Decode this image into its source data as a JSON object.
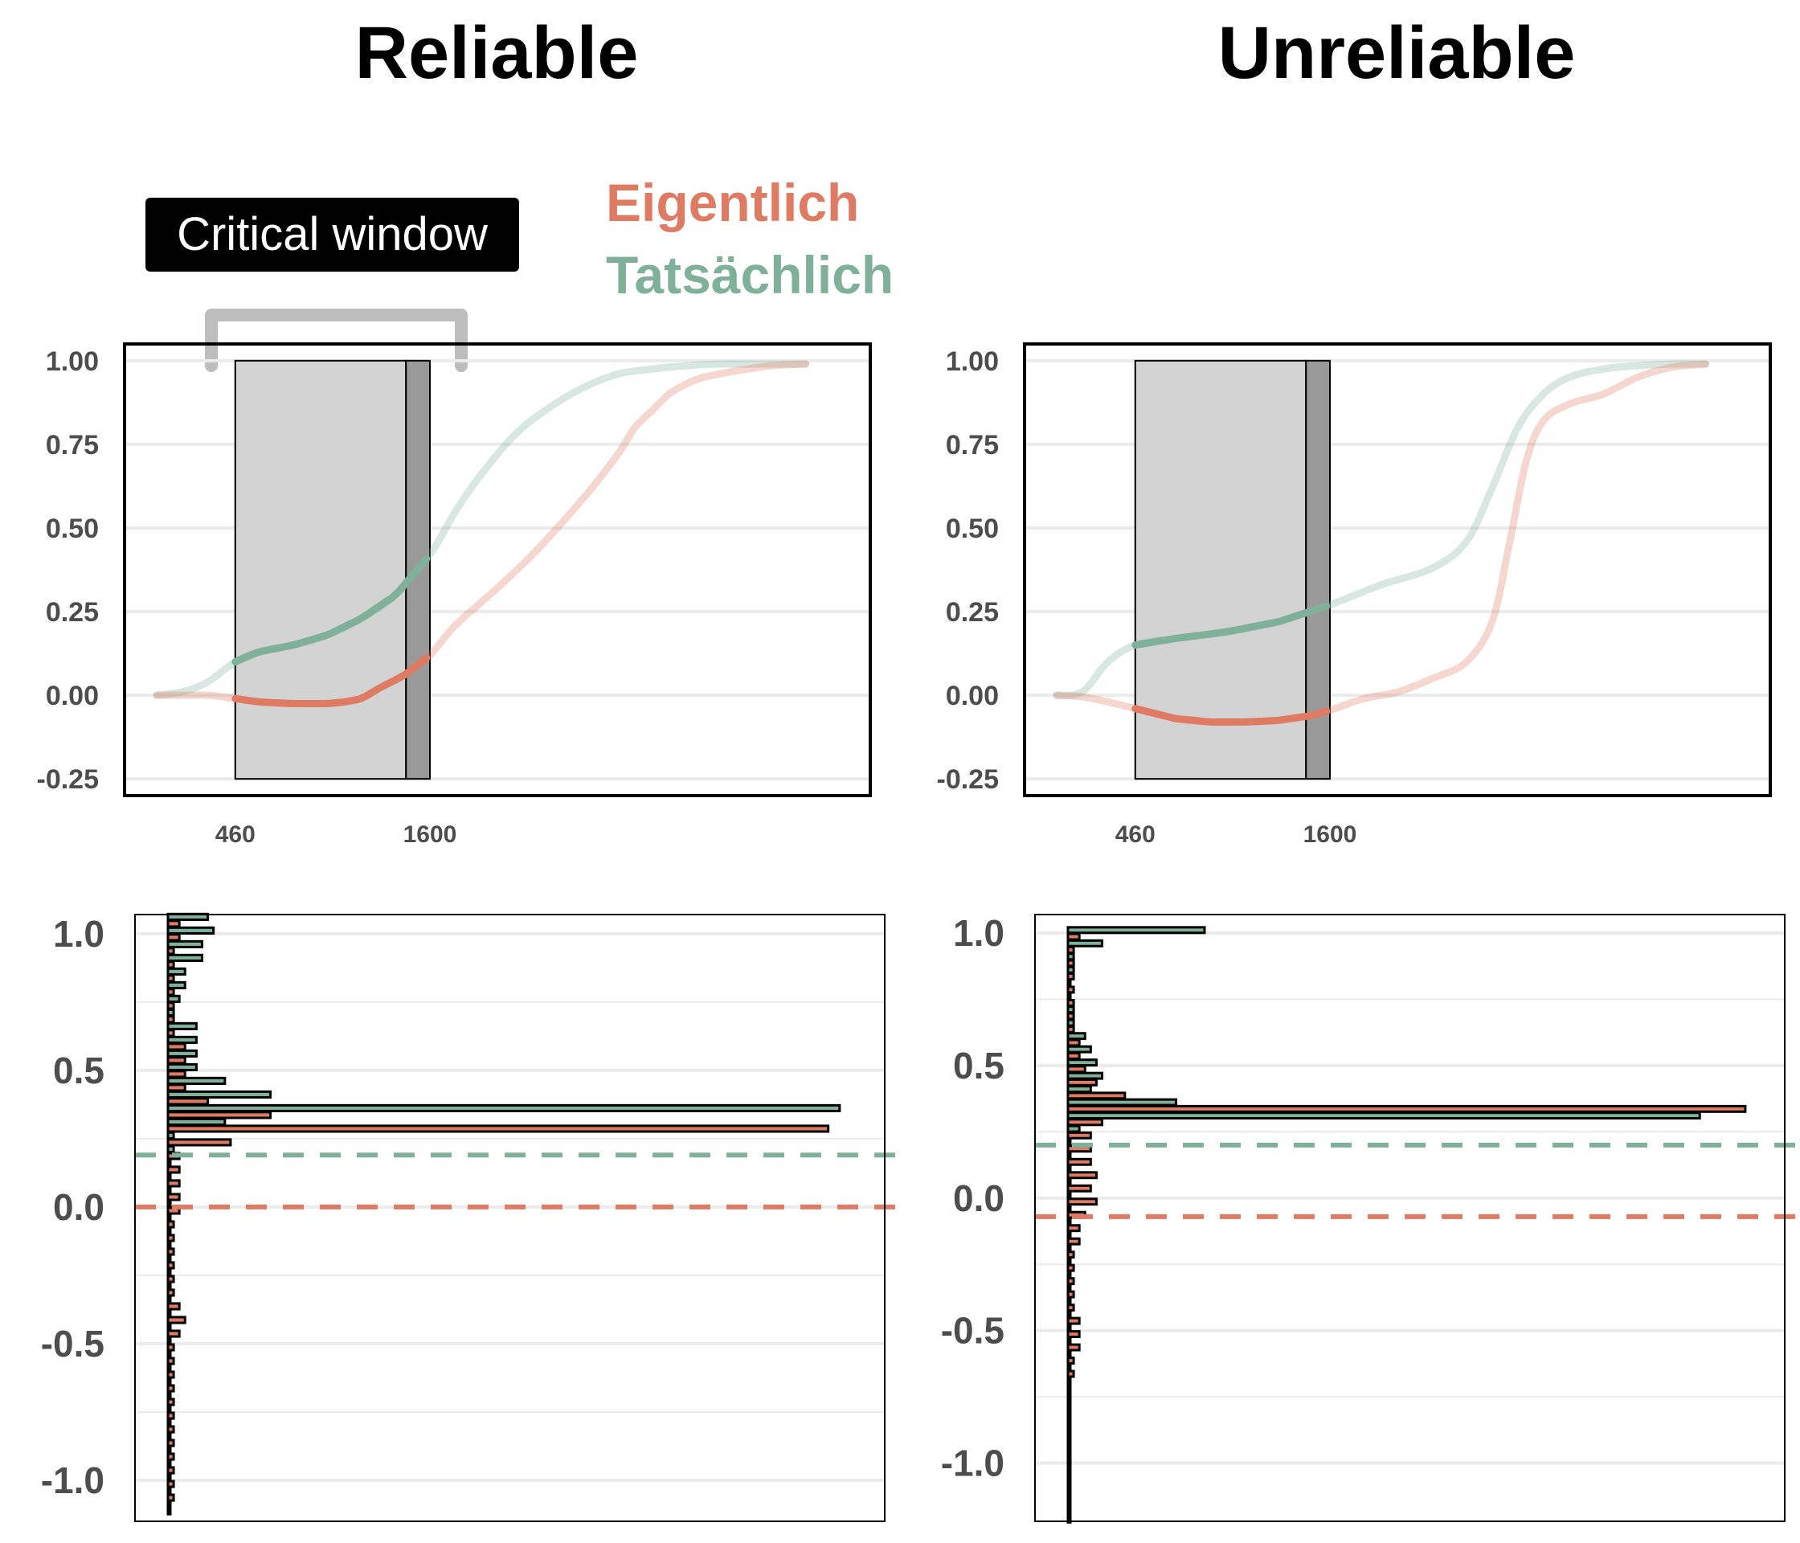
{
  "titles": {
    "left": "Reliable",
    "right": "Unreliable"
  },
  "annotation": {
    "critical_window": "Critical window"
  },
  "legend": {
    "eigentlich": "Eigentlich",
    "tatsachlich": "Tatsächlich"
  },
  "colors": {
    "eigentlich": "#E07B63",
    "tatsachlich": "#7FB19A",
    "window_fill": "#D3D3D3",
    "window_dark": "#999999",
    "bracket": "#BDBDBD",
    "grid": "#EBEBEB"
  },
  "chart_data": [
    {
      "type": "line",
      "panel": "Reliable",
      "critical_window": {
        "start": 460,
        "end": 1600,
        "dark_start": 1460
      },
      "x_ticks": [
        460,
        1600
      ],
      "xlim": [
        0,
        4000
      ],
      "ylim": [
        -0.3,
        1.05
      ],
      "y_ticks": [
        "-0.25",
        "0.00",
        "0.25",
        "0.50",
        "0.75",
        "1.00"
      ],
      "series": [
        {
          "name": "Tatsächlich",
          "x": [
            0,
            150,
            300,
            460,
            600,
            800,
            1000,
            1200,
            1400,
            1600,
            1750,
            1900,
            2100,
            2300,
            2500,
            2700,
            2900,
            3100,
            3300,
            3500,
            3800
          ],
          "y": [
            0.0,
            0.01,
            0.04,
            0.1,
            0.13,
            0.15,
            0.18,
            0.23,
            0.3,
            0.42,
            0.55,
            0.66,
            0.78,
            0.86,
            0.92,
            0.96,
            0.975,
            0.985,
            0.99,
            0.99,
            0.99
          ]
        },
        {
          "name": "Eigentlich",
          "x": [
            0,
            150,
            300,
            460,
            600,
            800,
            1000,
            1100,
            1200,
            1300,
            1450,
            1600,
            1750,
            1950,
            2200,
            2500,
            2700,
            2800,
            2900,
            3000,
            3100,
            3200,
            3400,
            3600,
            3800
          ],
          "y": [
            0.0,
            0.0,
            0.0,
            -0.01,
            -0.02,
            -0.025,
            -0.025,
            -0.02,
            -0.01,
            0.02,
            0.06,
            0.12,
            0.21,
            0.3,
            0.42,
            0.59,
            0.72,
            0.8,
            0.85,
            0.9,
            0.93,
            0.95,
            0.97,
            0.985,
            0.99
          ]
        }
      ]
    },
    {
      "type": "line",
      "panel": "Unreliable",
      "critical_window": {
        "start": 460,
        "end": 1600,
        "dark_start": 1460
      },
      "x_ticks": [
        460,
        1600
      ],
      "xlim": [
        0,
        4000
      ],
      "ylim": [
        -0.3,
        1.05
      ],
      "y_ticks": [
        "-0.25",
        "0.00",
        "0.25",
        "0.50",
        "0.75",
        "1.00"
      ],
      "series": [
        {
          "name": "Tatsächlich",
          "x": [
            0,
            150,
            300,
            460,
            700,
            1000,
            1300,
            1600,
            1900,
            2200,
            2400,
            2550,
            2700,
            2850,
            3000,
            3200,
            3400,
            3600,
            3800
          ],
          "y": [
            0.0,
            0.01,
            0.1,
            0.15,
            0.17,
            0.19,
            0.22,
            0.27,
            0.33,
            0.38,
            0.46,
            0.62,
            0.8,
            0.9,
            0.95,
            0.975,
            0.985,
            0.99,
            0.99
          ]
        },
        {
          "name": "Eigentlich",
          "x": [
            0,
            150,
            300,
            460,
            700,
            900,
            1100,
            1300,
            1500,
            1600,
            1800,
            2000,
            2200,
            2400,
            2550,
            2650,
            2750,
            2850,
            3000,
            3200,
            3400,
            3600,
            3800
          ],
          "y": [
            0.0,
            -0.005,
            -0.02,
            -0.04,
            -0.07,
            -0.08,
            -0.08,
            -0.075,
            -0.06,
            -0.045,
            -0.01,
            0.01,
            0.05,
            0.1,
            0.22,
            0.45,
            0.7,
            0.82,
            0.87,
            0.9,
            0.95,
            0.98,
            0.99
          ]
        }
      ]
    },
    {
      "type": "bar",
      "panel": "Reliable",
      "orientation": "horizontal",
      "ylim": [
        -1.15,
        1.07
      ],
      "y_ticks": [
        "-1.0",
        "-0.5",
        "0.0",
        "0.5",
        "1.0"
      ],
      "xlim": [
        0,
        120
      ],
      "reference_lines": {
        "Tatsächlich": 0.19,
        "Eigentlich": 0.0
      },
      "bins": [
        1.05,
        1.0,
        0.95,
        0.9,
        0.85,
        0.8,
        0.75,
        0.7,
        0.65,
        0.6,
        0.55,
        0.5,
        0.45,
        0.4,
        0.35,
        0.3,
        0.25,
        0.2,
        0.15,
        0.1,
        0.05,
        0.0,
        -0.05,
        -0.1,
        -0.15,
        -0.2,
        -0.25,
        -0.3,
        -0.35,
        -0.4,
        -0.45,
        -0.5,
        -0.55,
        -0.6,
        -0.65,
        -0.7,
        -0.75,
        -0.8,
        -0.85,
        -0.9,
        -0.95,
        -1.0,
        -1.05,
        -1.1
      ],
      "series": [
        {
          "name": "Tatsächlich",
          "values": [
            7,
            8,
            6,
            6,
            3,
            3,
            2,
            1,
            5,
            5,
            5,
            5,
            10,
            18,
            118,
            10,
            1,
            1,
            0,
            0,
            0,
            0,
            0,
            0,
            0,
            0,
            0,
            0,
            0,
            0,
            0,
            0,
            0,
            0,
            0,
            0,
            0,
            0,
            0,
            0,
            0,
            0,
            0,
            0
          ]
        },
        {
          "name": "Eigentlich",
          "values": [
            2,
            2,
            1,
            1,
            1,
            1,
            1,
            1,
            1,
            3,
            3,
            3,
            3,
            7,
            18,
            116,
            11,
            2,
            2,
            2,
            2,
            2,
            1,
            1,
            1,
            1,
            1,
            1,
            2,
            3,
            2,
            1,
            1,
            1,
            1,
            1,
            1,
            1,
            1,
            1,
            1,
            1,
            1,
            0
          ]
        }
      ]
    },
    {
      "type": "bar",
      "panel": "Unreliable",
      "orientation": "horizontal",
      "ylim": [
        -1.22,
        1.07
      ],
      "y_ticks": [
        "-1.0",
        "-0.5",
        "0.0",
        "0.5",
        "1.0"
      ],
      "xlim": [
        0,
        120
      ],
      "reference_lines": {
        "Tatsächlich": 0.2,
        "Eigentlich": -0.07
      },
      "bins": [
        1.0,
        0.95,
        0.9,
        0.85,
        0.8,
        0.75,
        0.7,
        0.65,
        0.6,
        0.55,
        0.5,
        0.45,
        0.4,
        0.35,
        0.3,
        0.25,
        0.2,
        0.15,
        0.1,
        0.05,
        0.0,
        -0.05,
        -0.1,
        -0.15,
        -0.2,
        -0.25,
        -0.3,
        -0.35,
        -0.4,
        -0.45,
        -0.5,
        -0.55,
        -0.6,
        -0.65,
        -0.7,
        -0.75,
        -0.8,
        -0.85,
        -0.9,
        -0.95,
        -1.0,
        -1.05,
        -1.1,
        -1.15,
        -1.2
      ],
      "series": [
        {
          "name": "Tatsächlich",
          "values": [
            24,
            6,
            1,
            1,
            0,
            0,
            1,
            1,
            3,
            4,
            5,
            6,
            4,
            19,
            111,
            2,
            0,
            0,
            0,
            0,
            0,
            0,
            0,
            0,
            0,
            0,
            0,
            0,
            0,
            0,
            0,
            0,
            0,
            0,
            0,
            0,
            0,
            0,
            0,
            0,
            0,
            0,
            0,
            0,
            0
          ]
        },
        {
          "name": "Eigentlich",
          "values": [
            2,
            1,
            1,
            1,
            1,
            1,
            1,
            1,
            2,
            2,
            3,
            5,
            10,
            119,
            6,
            4,
            4,
            4,
            5,
            4,
            5,
            3,
            2,
            2,
            1,
            1,
            1,
            1,
            1,
            2,
            2,
            2,
            1,
            1,
            0,
            0,
            0,
            0,
            0,
            0,
            0,
            0,
            0,
            0,
            0
          ]
        }
      ]
    }
  ]
}
